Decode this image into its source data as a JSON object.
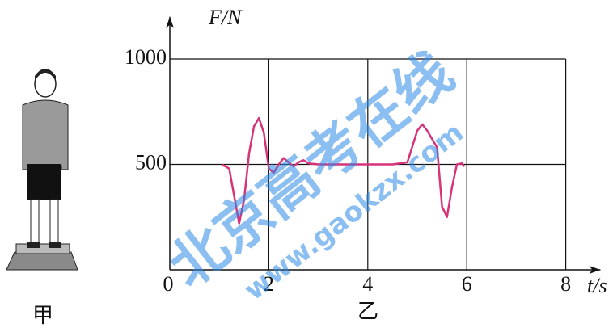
{
  "chart_data": {
    "type": "line",
    "y_label": "F/N",
    "x_label": "t/s",
    "caption_left": "甲",
    "caption_right": "乙",
    "watermark": "北京高考在线",
    "watermark_url": "www.gaokzx.com",
    "x": [
      1.05,
      1.2,
      1.3,
      1.4,
      1.5,
      1.6,
      1.7,
      1.8,
      1.9,
      2.0,
      2.1,
      2.2,
      2.3,
      2.4,
      2.5,
      2.6,
      2.7,
      2.8,
      3.0,
      4.5,
      4.8,
      5.0,
      5.1,
      5.2,
      5.3,
      5.4,
      5.5,
      5.6,
      5.7,
      5.8,
      5.9,
      5.95
    ],
    "series": [
      {
        "color": "#d6337a",
        "values": [
          500,
          480,
          350,
          220,
          330,
          550,
          680,
          720,
          650,
          480,
          460,
          500,
          530,
          510,
          490,
          510,
          520,
          505,
          500,
          500,
          510,
          660,
          690,
          660,
          620,
          580,
          300,
          250,
          390,
          500,
          505,
          490
        ]
      }
    ],
    "xlim": [
      0,
      8.7
    ],
    "ylim": [
      0,
      1200
    ],
    "xticks": [
      0,
      2,
      4,
      6,
      8
    ],
    "yticks": [
      500,
      1000
    ],
    "grid": true
  }
}
